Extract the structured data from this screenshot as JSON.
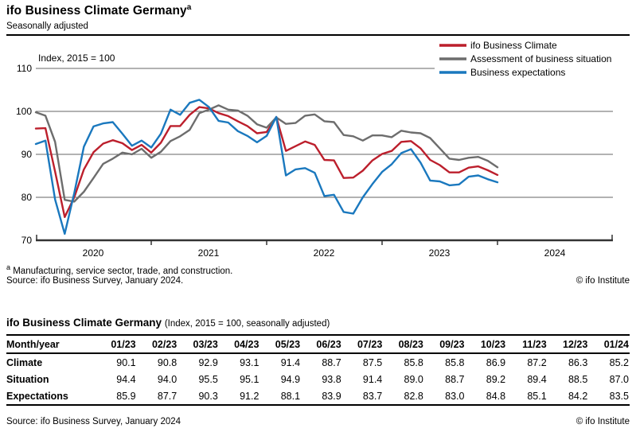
{
  "header": {
    "title": "ifo Business Climate Germany",
    "title_superscript": "a",
    "subtitle": "Seasonally adjusted"
  },
  "chart_data": {
    "type": "line",
    "title": "ifo Business Climate Germany",
    "ylabel": "Index, 2015 = 100",
    "xlabel": "",
    "ylim": [
      70,
      110
    ],
    "grid": true,
    "legend_position": "top-right",
    "y_tick_labels": [
      "110",
      "100",
      "90",
      "80",
      "70"
    ],
    "x_axis_years": [
      "2020",
      "2021",
      "2022",
      "2023",
      "2024"
    ],
    "x_months": [
      "2020-01",
      "2020-02",
      "2020-03",
      "2020-04",
      "2020-05",
      "2020-06",
      "2020-07",
      "2020-08",
      "2020-09",
      "2020-10",
      "2020-11",
      "2020-12",
      "2021-01",
      "2021-02",
      "2021-03",
      "2021-04",
      "2021-05",
      "2021-06",
      "2021-07",
      "2021-08",
      "2021-09",
      "2021-10",
      "2021-11",
      "2021-12",
      "2022-01",
      "2022-02",
      "2022-03",
      "2022-04",
      "2022-05",
      "2022-06",
      "2022-07",
      "2022-08",
      "2022-09",
      "2022-10",
      "2022-11",
      "2022-12",
      "2023-01",
      "2023-02",
      "2023-03",
      "2023-04",
      "2023-05",
      "2023-06",
      "2023-07",
      "2023-08",
      "2023-09",
      "2023-10",
      "2023-11",
      "2023-12",
      "2024-01"
    ],
    "series": [
      {
        "name": "ifo Business Climate",
        "color": "#bc1f2c",
        "values": [
          96.0,
          96.1,
          86.0,
          75.4,
          80.0,
          86.5,
          90.5,
          92.5,
          93.3,
          92.6,
          91.0,
          92.2,
          90.4,
          92.7,
          96.6,
          96.6,
          99.2,
          101.0,
          100.7,
          99.6,
          98.9,
          97.7,
          96.6,
          94.9,
          95.2,
          98.7,
          90.8,
          91.9,
          93.0,
          92.2,
          88.7,
          88.6,
          84.5,
          84.6,
          86.2,
          88.6,
          90.1,
          90.8,
          92.9,
          93.1,
          91.4,
          88.7,
          87.5,
          85.8,
          85.8,
          86.9,
          87.2,
          86.3,
          85.2
        ]
      },
      {
        "name": "Assessment of business situation",
        "color": "#6d6d6d",
        "values": [
          99.8,
          99.0,
          92.9,
          79.4,
          79.0,
          81.3,
          84.5,
          87.8,
          89.0,
          90.4,
          90.0,
          91.3,
          89.2,
          90.6,
          93.1,
          94.2,
          95.7,
          99.6,
          100.4,
          101.4,
          100.4,
          100.2,
          99.0,
          97.0,
          96.2,
          98.6,
          97.1,
          97.3,
          99.0,
          99.3,
          97.7,
          97.5,
          94.5,
          94.2,
          93.2,
          94.4,
          94.4,
          94.0,
          95.5,
          95.1,
          94.9,
          93.8,
          91.4,
          89.0,
          88.7,
          89.2,
          89.4,
          88.5,
          87.0
        ]
      },
      {
        "name": "Business expectations",
        "color": "#1a78be",
        "values": [
          92.4,
          93.2,
          79.5,
          71.5,
          81.0,
          91.8,
          96.5,
          97.2,
          97.5,
          94.8,
          92.0,
          93.2,
          91.6,
          94.8,
          100.4,
          99.2,
          102.0,
          102.7,
          101.0,
          97.8,
          97.4,
          95.4,
          94.3,
          92.8,
          94.3,
          98.7,
          85.1,
          86.5,
          86.8,
          85.7,
          80.3,
          80.6,
          76.6,
          76.2,
          80.0,
          83.1,
          85.9,
          87.7,
          90.3,
          91.2,
          88.1,
          83.9,
          83.7,
          82.8,
          83.0,
          84.8,
          85.1,
          84.2,
          83.5
        ]
      }
    ]
  },
  "footnotes": {
    "marker": "a",
    "note": "Manufacturing, service sector, trade, and construction.",
    "source": "Source: ifo Business Survey, January 2024.",
    "copyright": "© ifo Institute"
  },
  "table": {
    "title": "ifo Business Climate Germany",
    "subtitle": "(Index, 2015 = 100, seasonally adjusted)",
    "header_label": "Month/year",
    "columns": [
      "01/23",
      "02/23",
      "03/23",
      "04/23",
      "05/23",
      "06/23",
      "07/23",
      "08/23",
      "09/23",
      "10/23",
      "11/23",
      "12/23",
      "01/24"
    ],
    "rows": [
      {
        "label": "Climate",
        "values": [
          "90.1",
          "90.8",
          "92.9",
          "93.1",
          "91.4",
          "88.7",
          "87.5",
          "85.8",
          "85.8",
          "86.9",
          "87.2",
          "86.3",
          "85.2"
        ]
      },
      {
        "label": "Situation",
        "values": [
          "94.4",
          "94.0",
          "95.5",
          "95.1",
          "94.9",
          "93.8",
          "91.4",
          "89.0",
          "88.7",
          "89.2",
          "89.4",
          "88.5",
          "87.0"
        ]
      },
      {
        "label": "Expectations",
        "values": [
          "85.9",
          "87.7",
          "90.3",
          "91.2",
          "88.1",
          "83.9",
          "83.7",
          "82.8",
          "83.0",
          "84.8",
          "85.1",
          "84.2",
          "83.5"
        ]
      }
    ]
  },
  "footer": {
    "source": "Source: ifo Business Survey, January 2024",
    "copyright": "© ifo Institute"
  }
}
